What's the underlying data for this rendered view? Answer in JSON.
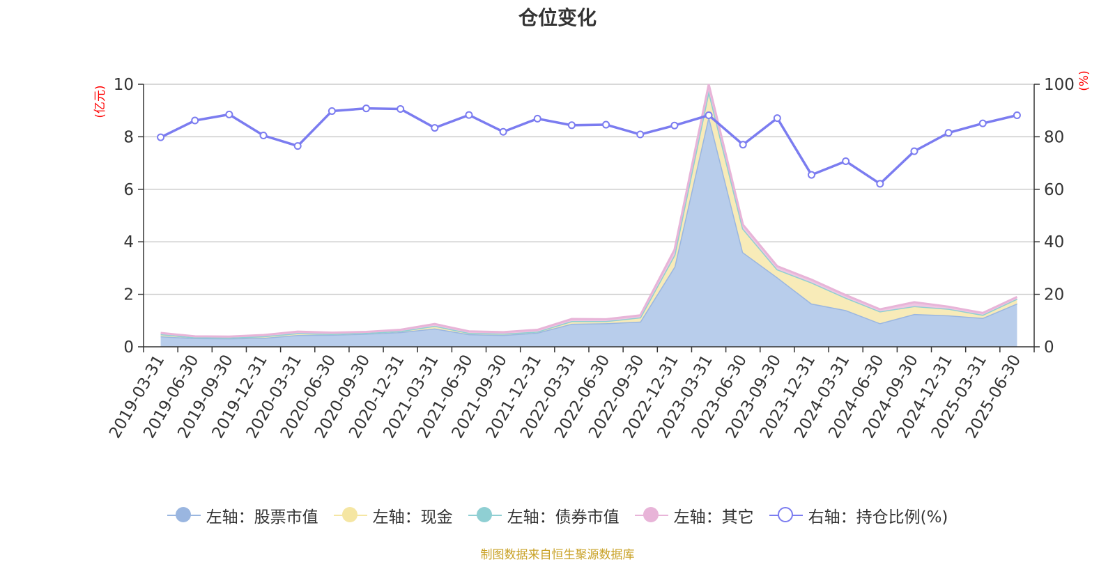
{
  "chart_data": {
    "type": "area",
    "title": "仓位变化",
    "left_axis_unit": "(亿元)",
    "right_axis_unit": "(%)",
    "categories": [
      "2019-03-31",
      "2019-06-30",
      "2019-09-30",
      "2019-12-31",
      "2020-03-31",
      "2020-06-30",
      "2020-09-30",
      "2020-12-31",
      "2021-03-31",
      "2021-06-30",
      "2021-09-30",
      "2021-12-31",
      "2022-03-31",
      "2022-06-30",
      "2022-09-30",
      "2022-12-31",
      "2023-03-31",
      "2023-06-30",
      "2023-09-30",
      "2023-12-31",
      "2024-03-31",
      "2024-06-30",
      "2024-09-30",
      "2024-12-31",
      "2025-03-31",
      "2025-06-30"
    ],
    "left_ylim": [
      0,
      10
    ],
    "left_ticks": [
      "0",
      "2",
      "4",
      "6",
      "8",
      "10"
    ],
    "right_ylim": [
      0,
      100
    ],
    "right_ticks": [
      "0",
      "20",
      "40",
      "60",
      "80",
      "100"
    ],
    "grid": true,
    "legend_position": "bottom",
    "series": [
      {
        "name": "左轴：股票市值",
        "axis": "left",
        "stacked": true,
        "color": "#9ab6e0",
        "fill": "#b8cdeb",
        "values": [
          0.4,
          0.33,
          0.32,
          0.34,
          0.45,
          0.46,
          0.5,
          0.56,
          0.7,
          0.48,
          0.45,
          0.54,
          0.88,
          0.9,
          0.96,
          3.05,
          8.8,
          3.6,
          2.65,
          1.65,
          1.4,
          0.9,
          1.25,
          1.2,
          1.1,
          1.65
        ]
      },
      {
        "name": "左轴：现金",
        "axis": "left",
        "stacked": true,
        "color": "#f5e6a3",
        "fill": "#f8ebb8",
        "values": [
          0.08,
          0.03,
          0.03,
          0.06,
          0.07,
          0.03,
          0.03,
          0.04,
          0.1,
          0.05,
          0.05,
          0.04,
          0.1,
          0.08,
          0.16,
          0.45,
          0.95,
          0.9,
          0.3,
          0.8,
          0.47,
          0.45,
          0.3,
          0.25,
          0.12,
          0.18
        ]
      },
      {
        "name": "左轴：债券市值",
        "axis": "left",
        "stacked": true,
        "color": "#8fcfd3",
        "fill": "#a9dade",
        "values": [
          0,
          0,
          0,
          0,
          0,
          0,
          0,
          0,
          0,
          0,
          0,
          0,
          0,
          0,
          0,
          0,
          0,
          0,
          0,
          0,
          0,
          0,
          0,
          0,
          0,
          0
        ]
      },
      {
        "name": "左轴：其它",
        "axis": "left",
        "stacked": true,
        "color": "#e8b4d8",
        "fill": "#eec7e2",
        "values": [
          0.05,
          0.04,
          0.04,
          0.05,
          0.06,
          0.05,
          0.04,
          0.05,
          0.07,
          0.06,
          0.06,
          0.07,
          0.08,
          0.07,
          0.08,
          0.2,
          0.25,
          0.15,
          0.12,
          0.11,
          0.1,
          0.08,
          0.15,
          0.08,
          0.07,
          0.07
        ]
      },
      {
        "name": "右轴：持仓比例(%)",
        "axis": "right",
        "stacked": false,
        "color": "#7b7cf0",
        "values": [
          79.8,
          86.2,
          88.5,
          80.5,
          76.5,
          89.8,
          90.8,
          90.6,
          83.4,
          88.3,
          81.9,
          86.9,
          84.4,
          84.6,
          80.9,
          84.3,
          88.2,
          77.0,
          87.1,
          65.5,
          70.7,
          62.1,
          74.5,
          81.5,
          85.1,
          88.2
        ]
      }
    ]
  },
  "source_text": "制图数据来自恒生聚源数据库"
}
